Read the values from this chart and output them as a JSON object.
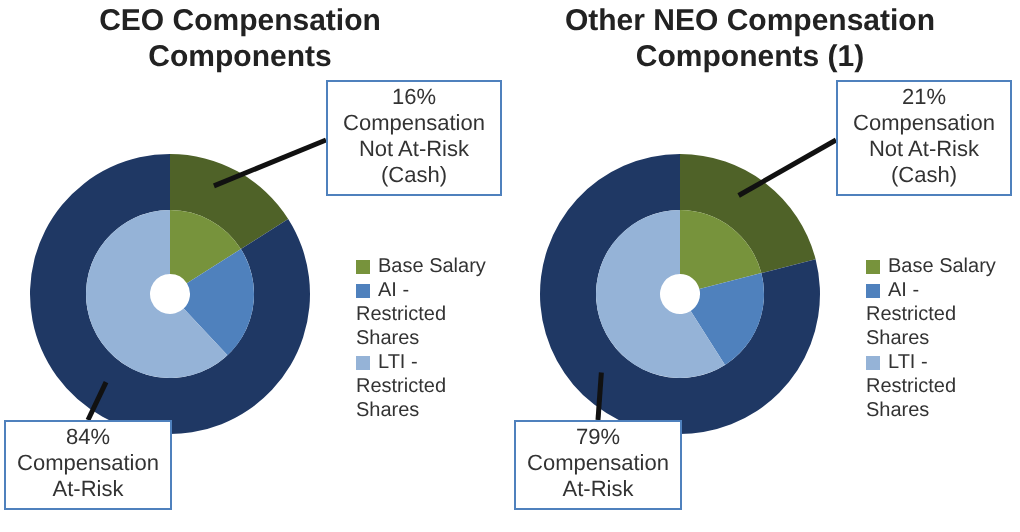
{
  "chart_data": [
    {
      "type": "donut",
      "title": "CEO Compensation Components",
      "categories": [
        null,
        null
      ],
      "values": [
        16,
        84
      ],
      "colors": [
        "#4f6228",
        "#1f3864"
      ],
      "annotations": [
        "16% Compensation Not At-Risk (Cash)",
        "84% Compensation At-Risk"
      ]
    },
    {
      "type": "donut",
      "categories": [
        "Base Salary",
        "AI - Restricted Shares",
        "LTI - Restricted Shares"
      ],
      "values": [
        16,
        22,
        62
      ],
      "colors": [
        "#77933c",
        "#4f81bd",
        "#95b3d7"
      ],
      "legend": "right"
    },
    {
      "type": "donut",
      "title": "Other NEO Compensation Components (1)",
      "categories": [
        null,
        null
      ],
      "values": [
        21,
        79
      ],
      "colors": [
        "#4f6228",
        "#1f3864"
      ],
      "annotations": [
        "21% Compensation Not At-Risk (Cash)",
        "79% Compensation At-Risk"
      ]
    },
    {
      "type": "donut",
      "categories": [
        "Base Salary",
        "AI - Restricted Shares",
        "LTI - Restricted Shares"
      ],
      "values": [
        21,
        20,
        59
      ],
      "colors": [
        "#77933c",
        "#4f81bd",
        "#95b3d7"
      ],
      "legend": "right"
    }
  ]
}
